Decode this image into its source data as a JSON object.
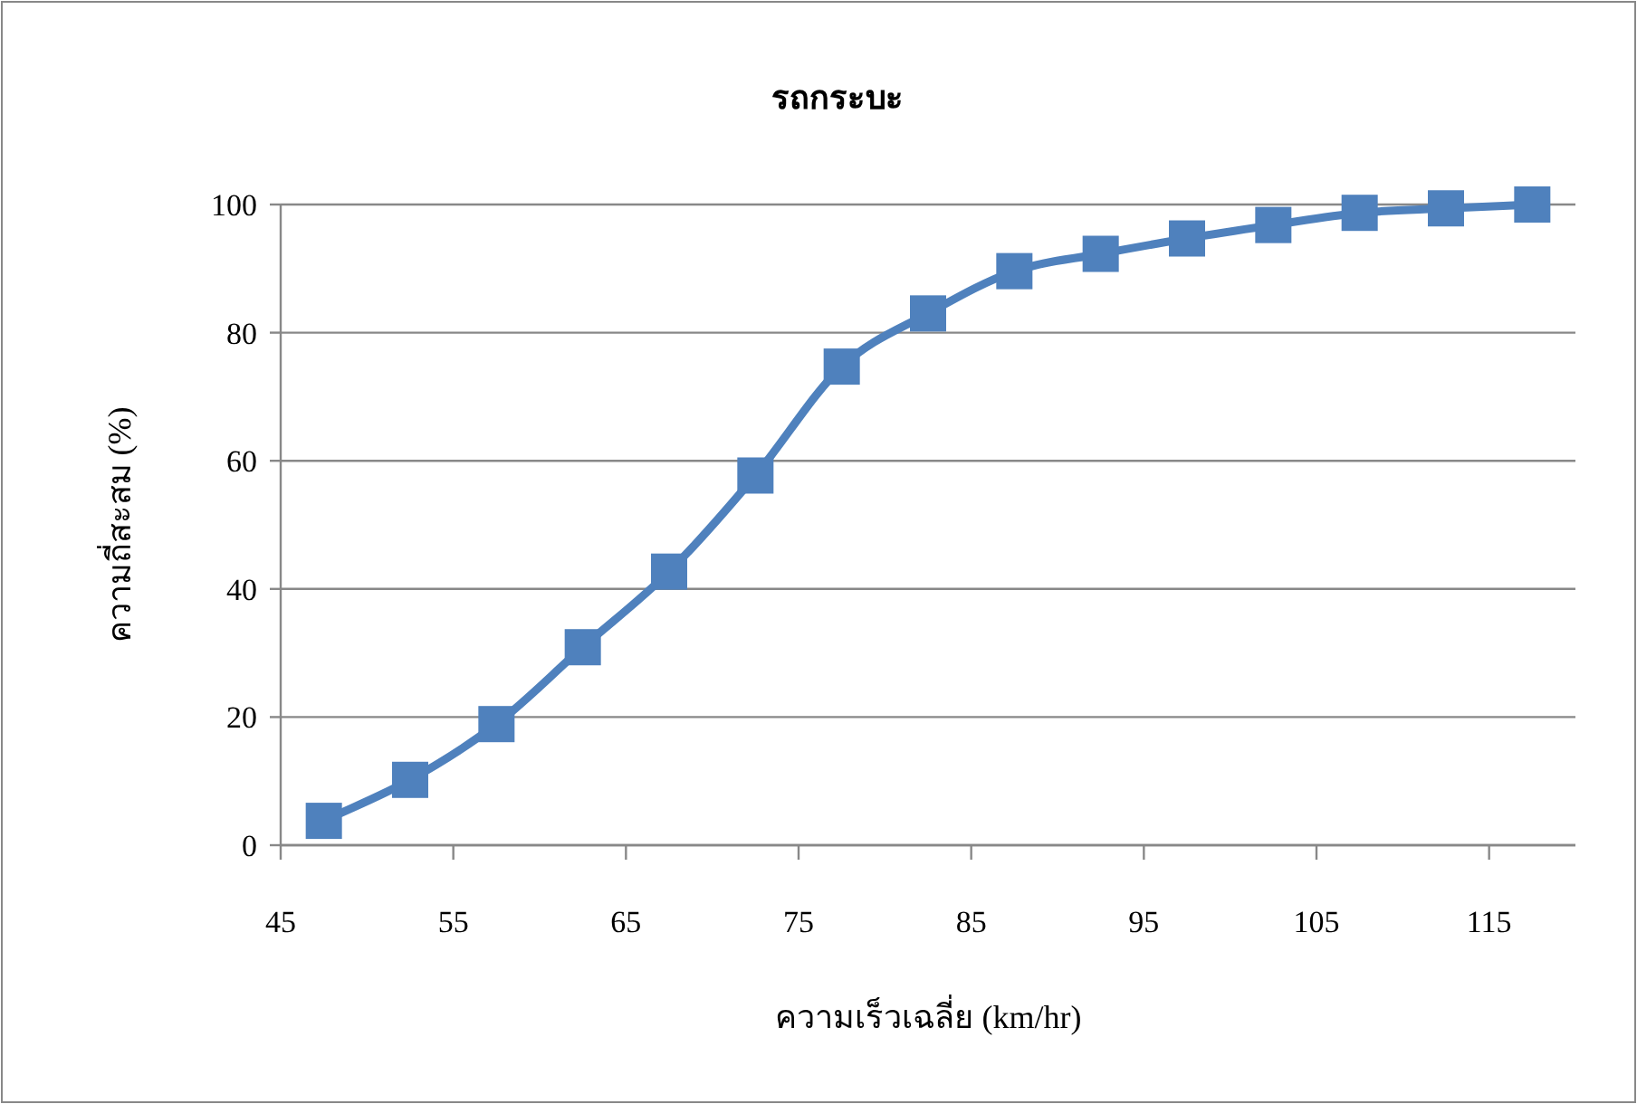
{
  "chart_data": {
    "type": "line",
    "title": "รถกระบะ",
    "xlabel": "ความเร็วเฉลี่ย (km/hr)",
    "ylabel": "ความถี่สะสม (%)",
    "x": [
      47.5,
      52.5,
      57.5,
      62.5,
      67.5,
      72.5,
      77.5,
      82.5,
      87.5,
      92.5,
      97.5,
      102.5,
      107.5,
      112.5,
      117.5
    ],
    "series": [
      {
        "color": "#4f81bd",
        "values": [
          3.8,
          10.2,
          18.9,
          30.9,
          42.7,
          57.7,
          74.7,
          83.0,
          89.6,
          92.3,
          94.7,
          96.8,
          98.7,
          99.4,
          100
        ]
      }
    ],
    "xlim": [
      45,
      120
    ],
    "xticks": [
      45,
      55,
      65,
      75,
      85,
      95,
      105,
      115
    ],
    "ylim": [
      0,
      100
    ],
    "yticks": [
      0,
      20,
      40,
      60,
      80,
      100
    ],
    "grid": "y",
    "marker": "square",
    "line_style": "solid"
  }
}
